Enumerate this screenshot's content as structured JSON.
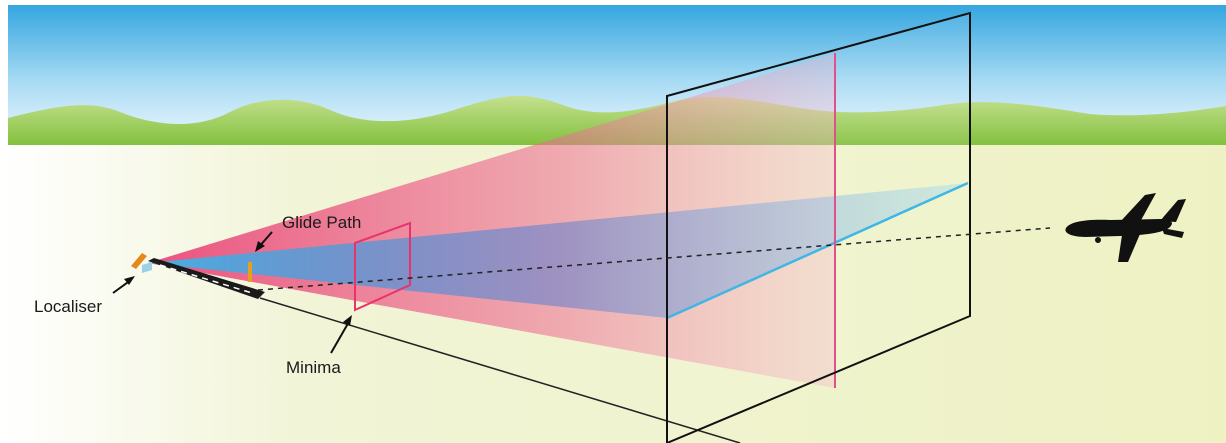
{
  "diagram": {
    "labels": {
      "glide_path": "Glide Path",
      "localiser": "Localiser",
      "minima": "Minima"
    },
    "colors": {
      "sky_top": "#3aa9e0",
      "sky_bottom": "#eaf6fd",
      "hills": "#8cc63f",
      "ground": "#eef2c6",
      "localiser_beam": "#e83e72",
      "glide_path_beam": "#3fb6e6",
      "minima_frame": "#e8336b",
      "localiser_marker": "#e38a1a",
      "aircraft": "#111111"
    },
    "icons": [
      "aircraft-icon",
      "runway-icon",
      "localiser-antenna-icon",
      "glide-path-antenna-icon"
    ]
  }
}
